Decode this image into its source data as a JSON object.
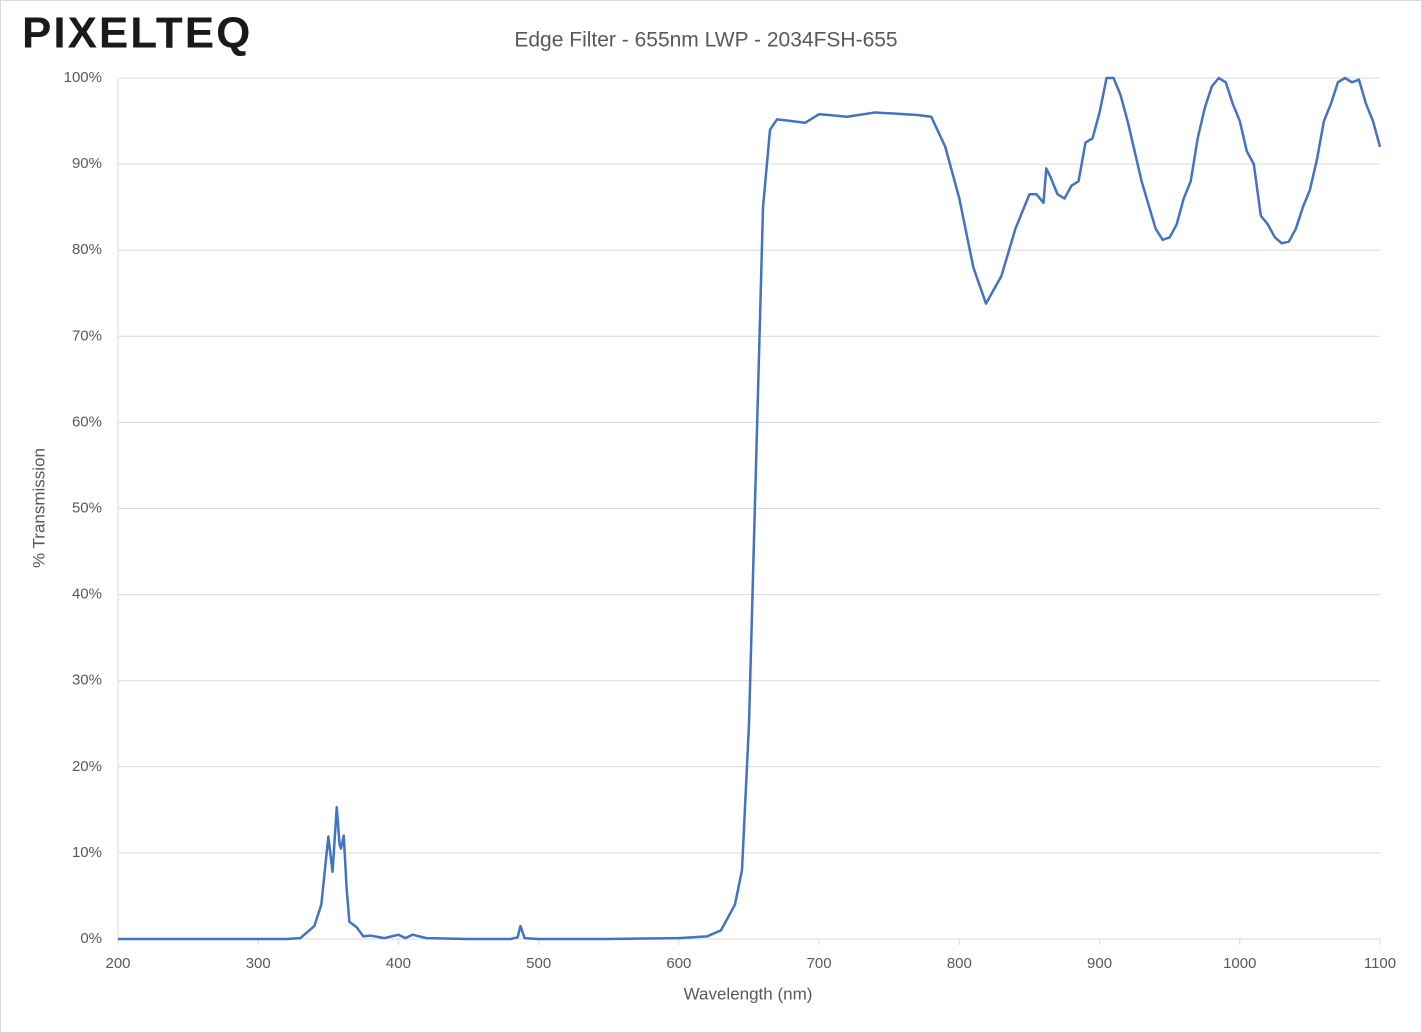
{
  "logo": "PIXELTEQ",
  "chart_data": {
    "type": "line",
    "title": "Edge Filter - 655nm LWP - 2034FSH-655",
    "x_label": "Wavelength (nm)",
    "y_label": "% Transmission",
    "color": "#4472c4",
    "grid": true,
    "x": [
      200,
      300,
      320,
      330,
      340,
      345,
      350,
      353,
      356,
      358,
      359,
      361,
      363,
      365,
      370,
      375,
      380,
      390,
      400,
      405,
      410,
      420,
      450,
      480,
      485,
      487,
      490,
      500,
      550,
      600,
      620,
      630,
      640,
      645,
      650,
      655,
      660,
      665,
      670,
      680,
      690,
      700,
      720,
      740,
      760,
      770,
      780,
      790,
      800,
      810,
      819,
      830,
      840,
      850,
      855,
      860,
      862,
      865,
      870,
      875,
      880,
      885,
      890,
      895,
      900,
      905,
      910,
      915,
      920,
      930,
      940,
      945,
      950,
      955,
      960,
      965,
      970,
      975,
      980,
      985,
      990,
      995,
      1000,
      1005,
      1010,
      1015,
      1020,
      1025,
      1030,
      1035,
      1040,
      1045,
      1050,
      1055,
      1060,
      1065,
      1070,
      1075,
      1080,
      1085,
      1090,
      1095,
      1100
    ],
    "values": [
      0,
      0,
      0,
      0.1,
      1.5,
      4,
      11.9,
      7.8,
      15.3,
      11,
      10.5,
      12,
      6,
      2,
      1.4,
      0.3,
      0.4,
      0.1,
      0.5,
      0.1,
      0.5,
      0.1,
      0,
      0,
      0.2,
      1.5,
      0.1,
      0,
      0,
      0.1,
      0.3,
      1,
      4,
      8,
      25,
      55,
      85,
      94,
      95.2,
      95,
      94.8,
      95.8,
      95.5,
      96,
      95.8,
      95.7,
      95.5,
      92,
      86,
      78,
      73.8,
      77,
      82.5,
      86.5,
      86.5,
      85.5,
      89.5,
      88.5,
      86.5,
      86,
      87.5,
      88,
      92.5,
      93,
      96,
      100,
      100,
      98,
      95,
      88,
      82.5,
      81.2,
      81.5,
      83,
      86,
      88,
      93,
      96.5,
      99,
      100,
      99.5,
      97,
      95,
      91.5,
      90,
      84,
      83,
      81.5,
      80.8,
      81,
      82.5,
      85,
      87,
      90.5,
      95,
      97,
      99.5,
      100,
      99.5,
      99.8,
      97,
      95,
      92
    ],
    "xlim": [
      200,
      1100
    ],
    "ylim": [
      0,
      100
    ],
    "xticks": [
      200,
      300,
      400,
      500,
      600,
      700,
      800,
      900,
      1000,
      1100
    ],
    "yticks": [
      {
        "value": 0,
        "label": "0%"
      },
      {
        "value": 10,
        "label": "10%"
      },
      {
        "value": 20,
        "label": "20%"
      },
      {
        "value": 30,
        "label": "30%"
      },
      {
        "value": 40,
        "label": "40%"
      },
      {
        "value": 50,
        "label": "50%"
      },
      {
        "value": 60,
        "label": "60%"
      },
      {
        "value": 70,
        "label": "70%"
      },
      {
        "value": 80,
        "label": "80%"
      },
      {
        "value": 90,
        "label": "90%"
      },
      {
        "value": 100,
        "label": "100%"
      }
    ]
  }
}
